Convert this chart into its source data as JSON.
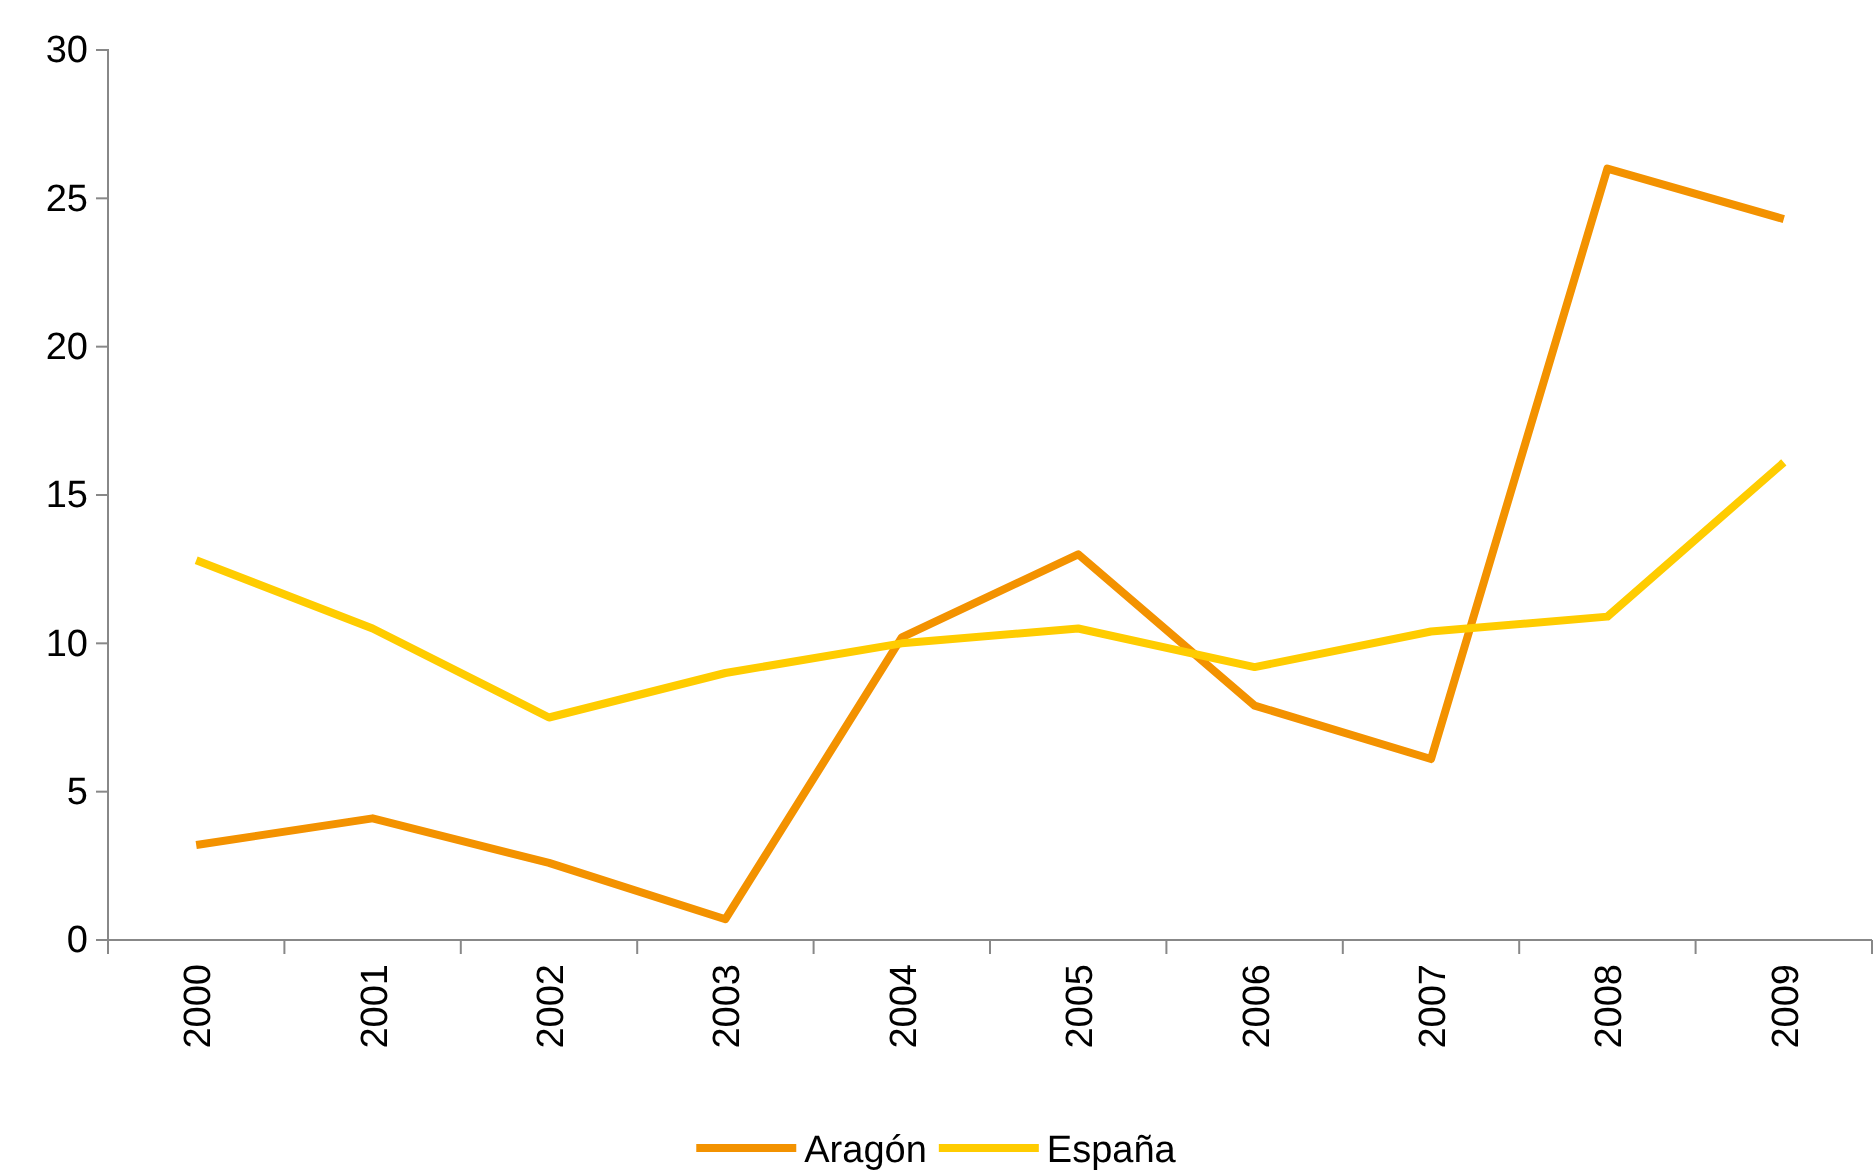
{
  "chart_data": {
    "type": "line",
    "categories": [
      "2000",
      "2001",
      "2002",
      "2003",
      "2004",
      "2005",
      "2006",
      "2007",
      "2008",
      "2009"
    ],
    "series": [
      {
        "name": "Aragón",
        "color": "#f39200",
        "values": [
          3.2,
          4.1,
          2.6,
          0.7,
          10.2,
          13.0,
          7.9,
          6.1,
          26.0,
          24.3
        ]
      },
      {
        "name": "España",
        "color": "#ffcc00",
        "values": [
          12.8,
          10.5,
          7.5,
          9.0,
          10.0,
          10.5,
          9.2,
          10.4,
          10.9,
          16.1
        ]
      }
    ],
    "ylim": [
      0,
      30
    ],
    "yticks": [
      0,
      5,
      10,
      15,
      20,
      25,
      30
    ],
    "legend": "bottom",
    "grid": false,
    "marker": "none",
    "line_style": "solid"
  }
}
